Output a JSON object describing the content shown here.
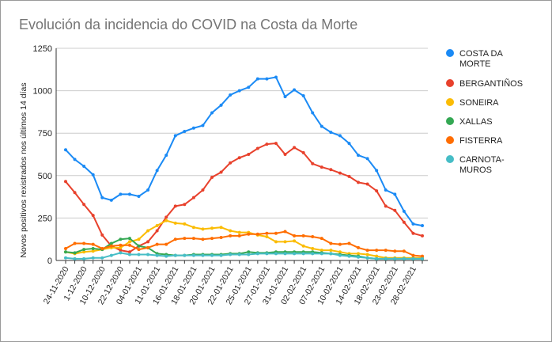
{
  "chart_data": {
    "type": "line",
    "title": "Evolución da incidencia do COVID na Costa da Morte",
    "xlabel": "",
    "ylabel": "Novos positivos rexistrados nos últimos 14 días",
    "ylim": [
      0,
      1250
    ],
    "yticks": [
      0,
      250,
      500,
      750,
      1000,
      1250
    ],
    "grid": true,
    "legend": "right",
    "tick_labels": [
      "24-11-2020",
      "1-12-2020",
      "10-12-2020",
      "22-12-2020",
      "04-01-2021",
      "11-01-2021",
      "16-01-2021",
      "18-01-2021",
      "20-01-2021",
      "22-01-2021",
      "25-01-2021",
      "27-01-2021",
      "31-01-2021",
      "02-02-2021",
      "07-02-2021",
      "10-02-2021",
      "14-02-2021",
      "18-02-2021",
      "23-02-2021",
      "28-02-2021"
    ],
    "series": [
      {
        "name": "COSTA DA MORTE",
        "color": "#1a8af5",
        "values": [
          652,
          595,
          555,
          505,
          370,
          355,
          390,
          390,
          378,
          415,
          530,
          620,
          735,
          760,
          780,
          795,
          870,
          915,
          975,
          1000,
          1020,
          1070,
          1070,
          1080,
          965,
          1005,
          970,
          870,
          790,
          755,
          735,
          690,
          620,
          600,
          530,
          415,
          390,
          290,
          215,
          205
        ]
      },
      {
        "name": "BERGANTIÑOS",
        "color": "#e8412c",
        "values": [
          465,
          400,
          330,
          265,
          150,
          85,
          60,
          50,
          85,
          110,
          175,
          255,
          320,
          330,
          370,
          415,
          490,
          520,
          575,
          605,
          625,
          660,
          685,
          690,
          625,
          665,
          635,
          570,
          550,
          535,
          515,
          495,
          460,
          450,
          410,
          320,
          295,
          225,
          160,
          145
        ]
      },
      {
        "name": "SONEIRA",
        "color": "#fbbc04",
        "values": [
          50,
          40,
          50,
          55,
          65,
          75,
          75,
          110,
          125,
          175,
          205,
          235,
          220,
          215,
          195,
          185,
          190,
          195,
          175,
          165,
          165,
          150,
          140,
          110,
          110,
          115,
          85,
          70,
          60,
          60,
          50,
          40,
          40,
          35,
          25,
          15,
          15,
          15,
          15,
          15
        ]
      },
      {
        "name": "XALLAS",
        "color": "#34a853",
        "values": [
          50,
          45,
          65,
          70,
          65,
          100,
          125,
          130,
          85,
          75,
          40,
          35,
          30,
          30,
          35,
          35,
          35,
          35,
          40,
          40,
          50,
          45,
          45,
          50,
          50,
          50,
          50,
          50,
          45,
          40,
          35,
          30,
          25,
          15,
          10,
          10,
          10,
          10,
          10,
          10
        ]
      },
      {
        "name": "FISTERRA",
        "color": "#ff6d01",
        "values": [
          70,
          100,
          100,
          95,
          70,
          85,
          90,
          90,
          65,
          75,
          95,
          95,
          125,
          130,
          130,
          125,
          130,
          135,
          145,
          145,
          155,
          155,
          160,
          160,
          170,
          145,
          145,
          140,
          130,
          100,
          95,
          100,
          75,
          60,
          60,
          60,
          55,
          55,
          30,
          25
        ]
      },
      {
        "name": "CARNOTA-MUROS",
        "color": "#46bdc6",
        "values": [
          15,
          10,
          10,
          15,
          15,
          30,
          45,
          35,
          35,
          35,
          30,
          25,
          30,
          30,
          30,
          30,
          30,
          30,
          35,
          35,
          35,
          40,
          40,
          40,
          40,
          40,
          40,
          40,
          40,
          40,
          30,
          25,
          20,
          15,
          10,
          10,
          10,
          10,
          10,
          10
        ]
      }
    ]
  }
}
